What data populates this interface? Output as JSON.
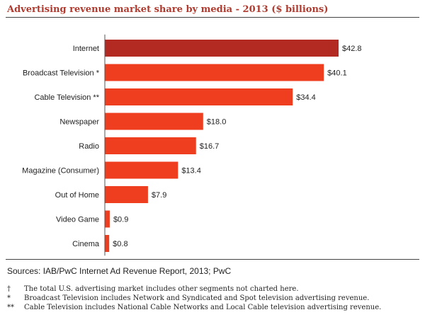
{
  "title": "Advertising revenue market share by media - 2013 ($ billions)",
  "sources": "Sources: IAB/PwC Internet Ad Revenue Report, 2013; PwC",
  "footnotes": [
    {
      "mark": "†",
      "text": "The total U.S. advertising market includes other segments not charted here."
    },
    {
      "mark": "*",
      "text": "Broadcast Television includes Network and Syndicated and Spot television advertising revenue."
    },
    {
      "mark": "**",
      "text": "Cable Television includes National Cable Networks and Local Cable television advertising revenue."
    }
  ],
  "colors": {
    "highlight": "#b32a22",
    "bar": "#ee3d1f",
    "title": "#b03a2e"
  },
  "chart_data": {
    "type": "bar",
    "orientation": "horizontal",
    "categories": [
      "Internet",
      "Broadcast Television *",
      "Cable Television **",
      "Newspaper",
      "Radio",
      "Magazine (Consumer)",
      "Out of Home",
      "Video Game",
      "Cinema"
    ],
    "values": [
      42.8,
      40.1,
      34.4,
      18.0,
      16.7,
      13.4,
      7.9,
      0.9,
      0.8
    ],
    "value_labels": [
      "$42.8",
      "$40.1",
      "$34.4",
      "$18.0",
      "$16.7",
      "$13.4",
      "$7.9",
      "$0.9",
      "$0.8"
    ],
    "title": "Advertising revenue market share by media - 2013 ($ billions)",
    "xlabel": "",
    "ylabel": "",
    "xlim": [
      0,
      42.8
    ],
    "grid": false,
    "highlight_index": 0
  }
}
